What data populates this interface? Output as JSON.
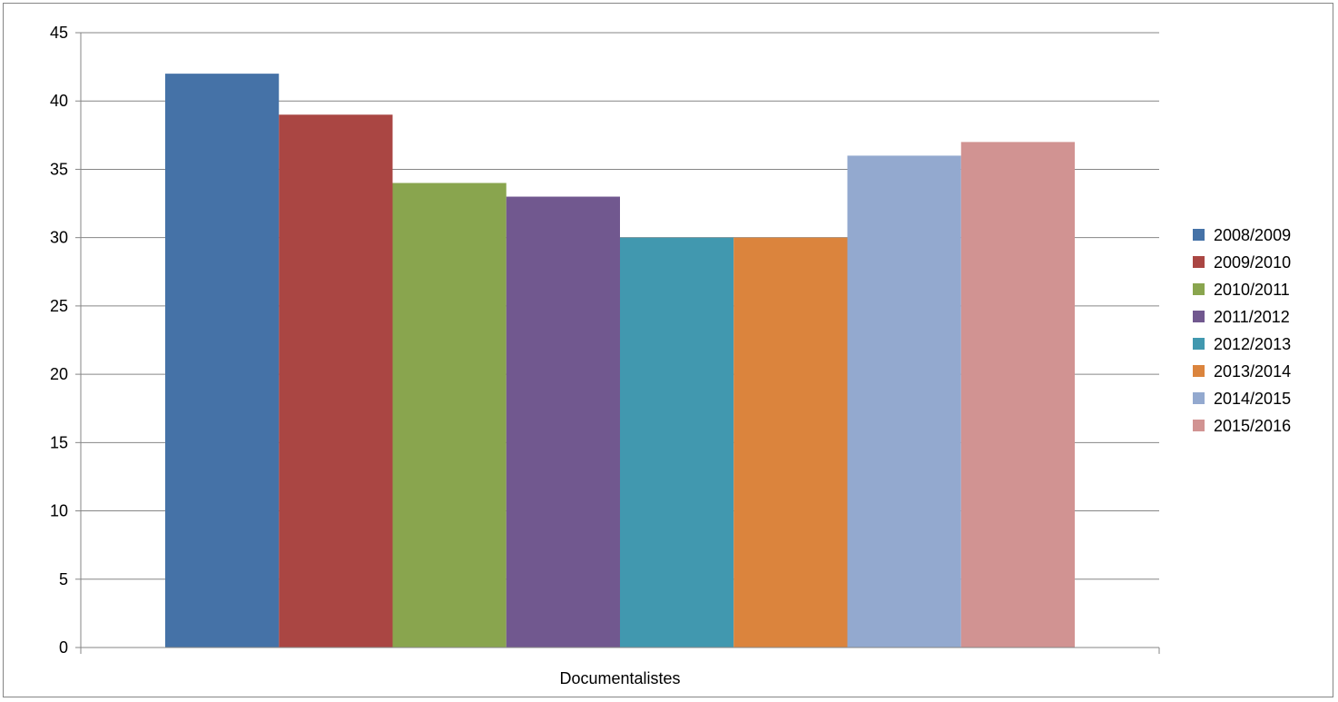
{
  "chart_data": {
    "type": "bar",
    "categories": [
      "Documentalistes"
    ],
    "series": [
      {
        "name": "2008/2009",
        "values": [
          42
        ],
        "color": "#4572A7"
      },
      {
        "name": "2009/2010",
        "values": [
          39
        ],
        "color": "#AA4643"
      },
      {
        "name": "2010/2011",
        "values": [
          34
        ],
        "color": "#89A54E"
      },
      {
        "name": "2011/2012",
        "values": [
          33
        ],
        "color": "#71588F"
      },
      {
        "name": "2012/2013",
        "values": [
          30
        ],
        "color": "#4198AF"
      },
      {
        "name": "2013/2014",
        "values": [
          30
        ],
        "color": "#DB843D"
      },
      {
        "name": "2014/2015",
        "values": [
          36
        ],
        "color": "#93A9CF"
      },
      {
        "name": "2015/2016",
        "values": [
          37
        ],
        "color": "#D19392"
      }
    ],
    "title": "",
    "xlabel": "",
    "ylabel": "",
    "ylim": [
      0,
      45
    ],
    "yticks": [
      0,
      5,
      10,
      15,
      20,
      25,
      30,
      35,
      40,
      45
    ],
    "grid": true,
    "legend_position": "right"
  }
}
